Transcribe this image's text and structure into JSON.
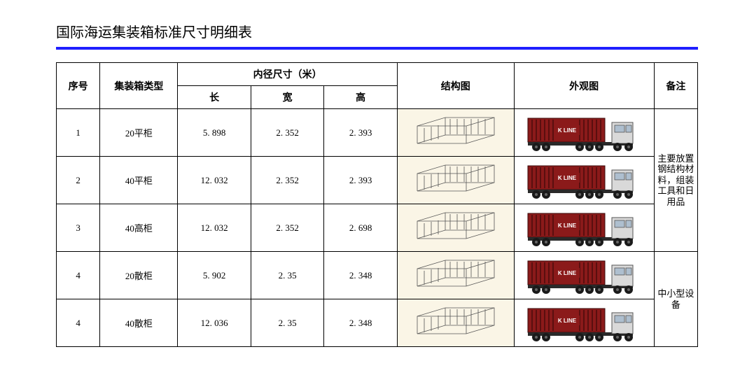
{
  "title": "国际海运集装箱标准尺寸明细表",
  "title_rule_color": "#1f1fff",
  "headers": {
    "seq": "序号",
    "type": "集装箱类型",
    "inner_group": "内径尺寸（米）",
    "length": "长",
    "width": "宽",
    "height": "高",
    "struct": "结构图",
    "exterior": "外观图",
    "note": "备注"
  },
  "rows": [
    {
      "seq": "1",
      "type": "20平柜",
      "length": "5. 898",
      "width": "2. 352",
      "height": "2. 393"
    },
    {
      "seq": "2",
      "type": "40平柜",
      "length": "12. 032",
      "width": "2. 352",
      "height": "2. 393"
    },
    {
      "seq": "3",
      "type": "40高柜",
      "length": "12. 032",
      "width": "2. 352",
      "height": "2. 698"
    },
    {
      "seq": "4",
      "type": "20散柜",
      "length": "5. 902",
      "width": "2. 35",
      "height": "2. 348"
    },
    {
      "seq": "4",
      "type": "40散柜",
      "length": "12. 036",
      "width": "2. 35",
      "height": "2. 348"
    }
  ],
  "truck_brand": "K LINE",
  "notes": [
    {
      "span": 3,
      "text": "主要放置钢结构材料，组装工具和日用品"
    },
    {
      "span": 2,
      "text": "中小型设备"
    }
  ],
  "colors": {
    "struct_bg": "#faf5e6",
    "container_body": "#8b1a1a",
    "container_dark": "#5a0f0f",
    "truck_cab": "#d9d9d9",
    "wheel": "#1a1a1a",
    "sketch_stroke": "#555555"
  }
}
